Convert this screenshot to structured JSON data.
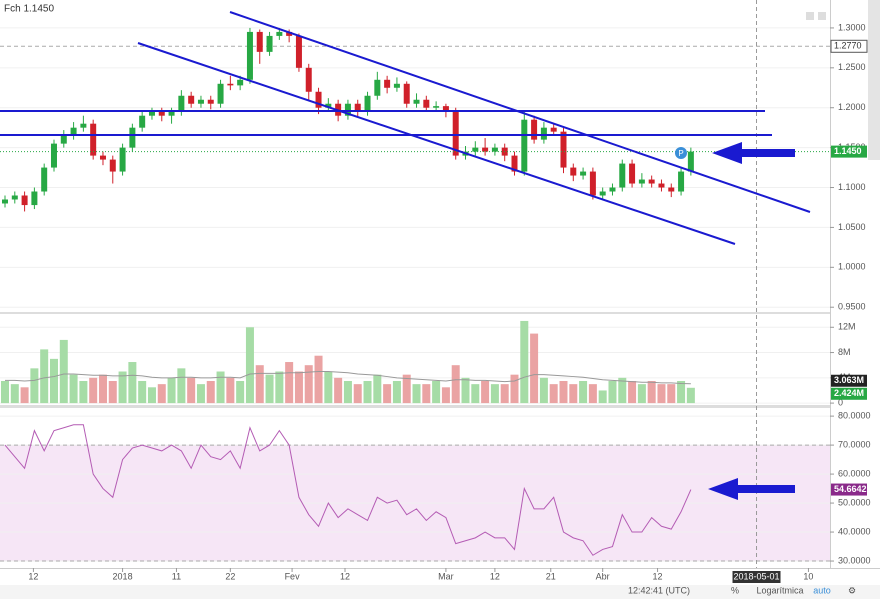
{
  "title": "Fch 1.1450",
  "status": [
    "12:42:41 (UTC)",
    "%",
    "Logarítmica",
    "auto"
  ],
  "chart_data": [
    {
      "type": "candlestick",
      "up_color": "#27a844",
      "down_color": "#d0202a",
      "open": [
        1.08,
        1.085,
        1.09,
        1.078,
        1.095,
        1.125,
        1.155,
        1.165,
        1.175,
        1.18,
        1.14,
        1.135,
        1.12,
        1.15,
        1.175,
        1.19,
        1.195,
        1.19,
        1.195,
        1.215,
        1.205,
        1.21,
        1.205,
        1.23,
        1.228,
        1.235,
        1.295,
        1.27,
        1.29,
        1.295,
        1.29,
        1.25,
        1.22,
        1.2,
        1.205,
        1.19,
        1.205,
        1.195,
        1.215,
        1.235,
        1.225,
        1.23,
        1.205,
        1.21,
        1.2,
        1.202,
        1.195,
        1.14,
        1.145,
        1.15,
        1.145,
        1.15,
        1.14,
        1.12,
        1.185,
        1.16,
        1.175,
        1.17,
        1.125,
        1.115,
        1.12,
        1.09,
        1.095,
        1.1,
        1.13,
        1.105,
        1.11,
        1.105,
        1.1,
        1.095,
        1.12
      ],
      "high": [
        1.09,
        1.095,
        1.095,
        1.1,
        1.13,
        1.16,
        1.172,
        1.182,
        1.19,
        1.185,
        1.145,
        1.14,
        1.155,
        1.18,
        1.195,
        1.2,
        1.2,
        1.2,
        1.222,
        1.22,
        1.215,
        1.215,
        1.235,
        1.24,
        1.24,
        1.3,
        1.298,
        1.295,
        1.3,
        1.298,
        1.293,
        1.255,
        1.225,
        1.212,
        1.21,
        1.21,
        1.21,
        1.22,
        1.245,
        1.24,
        1.238,
        1.233,
        1.218,
        1.215,
        1.208,
        1.205,
        1.2,
        1.152,
        1.158,
        1.162,
        1.155,
        1.155,
        1.145,
        1.195,
        1.19,
        1.182,
        1.18,
        1.175,
        1.13,
        1.125,
        1.125,
        1.1,
        1.105,
        1.135,
        1.135,
        1.118,
        1.115,
        1.11,
        1.105,
        1.125,
        1.15
      ],
      "low": [
        1.075,
        1.08,
        1.07,
        1.073,
        1.09,
        1.12,
        1.15,
        1.16,
        1.17,
        1.135,
        1.128,
        1.105,
        1.115,
        1.145,
        1.17,
        1.185,
        1.183,
        1.18,
        1.19,
        1.2,
        1.2,
        1.198,
        1.2,
        1.222,
        1.222,
        1.23,
        1.255,
        1.265,
        1.285,
        1.282,
        1.245,
        1.21,
        1.192,
        1.195,
        1.183,
        1.185,
        1.188,
        1.19,
        1.21,
        1.218,
        1.22,
        1.2,
        1.2,
        1.195,
        1.195,
        1.188,
        1.135,
        1.135,
        1.14,
        1.14,
        1.14,
        1.133,
        1.115,
        1.115,
        1.155,
        1.155,
        1.165,
        1.118,
        1.108,
        1.11,
        1.085,
        1.085,
        1.09,
        1.095,
        1.1,
        1.1,
        1.1,
        1.095,
        1.088,
        1.09,
        1.115
      ],
      "close": [
        1.085,
        1.09,
        1.078,
        1.095,
        1.125,
        1.155,
        1.165,
        1.175,
        1.18,
        1.14,
        1.135,
        1.12,
        1.15,
        1.175,
        1.19,
        1.195,
        1.19,
        1.195,
        1.215,
        1.205,
        1.21,
        1.205,
        1.23,
        1.228,
        1.235,
        1.295,
        1.27,
        1.29,
        1.295,
        1.29,
        1.25,
        1.22,
        1.2,
        1.205,
        1.19,
        1.205,
        1.195,
        1.215,
        1.235,
        1.225,
        1.23,
        1.205,
        1.21,
        1.2,
        1.202,
        1.195,
        1.14,
        1.145,
        1.15,
        1.145,
        1.15,
        1.14,
        1.12,
        1.185,
        1.16,
        1.175,
        1.17,
        1.125,
        1.115,
        1.12,
        1.09,
        1.095,
        1.1,
        1.13,
        1.105,
        1.11,
        1.105,
        1.1,
        1.095,
        1.12,
        1.145
      ],
      "ylim": [
        0.944,
        1.335
      ],
      "yticks": [
        {
          "value": 0.95,
          "label": "0.9500"
        },
        {
          "value": 1.0,
          "label": "1.0000"
        },
        {
          "value": 1.05,
          "label": "1.0500"
        },
        {
          "value": 1.1,
          "label": "1.1000"
        },
        {
          "value": 1.15,
          "label": "1.1500"
        },
        {
          "value": 1.2,
          "label": "1.2000"
        },
        {
          "value": 1.25,
          "label": "1.2500"
        },
        {
          "value": 1.3,
          "label": "1.3000"
        }
      ],
      "reference_line": {
        "value": 1.277,
        "label": "1.2770"
      },
      "last_label": "1.1450"
    },
    {
      "type": "bar",
      "up_color": "#a6dca6",
      "down_color": "#eaa3a3",
      "values": [
        3.5,
        3.0,
        2.5,
        5.5,
        8.5,
        7.0,
        10.0,
        4.5,
        3.5,
        4.0,
        4.5,
        3.5,
        5.0,
        6.5,
        3.5,
        2.5,
        3.0,
        4.0,
        5.5,
        4.0,
        3.0,
        3.5,
        5.0,
        4.0,
        3.5,
        12.0,
        6.0,
        4.5,
        5.0,
        6.5,
        5.0,
        6.0,
        7.5,
        5.0,
        4.0,
        3.5,
        3.0,
        3.5,
        4.5,
        3.0,
        3.5,
        4.5,
        3.0,
        3.0,
        3.5,
        2.5,
        6.0,
        4.0,
        3.0,
        3.5,
        3.0,
        3.0,
        4.5,
        13.0,
        11.0,
        4.0,
        3.0,
        3.5,
        3.0,
        3.5,
        3.0,
        2.0,
        3.5,
        4.0,
        3.5,
        3.0,
        3.5,
        3.0,
        3.0,
        3.5,
        2.424
      ],
      "last_label": "2.424M",
      "ma": {
        "color": "#999999",
        "values": [
          3.6,
          3.6,
          3.5,
          3.6,
          4.0,
          4.2,
          4.6,
          4.6,
          4.5,
          4.4,
          4.4,
          4.3,
          4.3,
          4.4,
          4.3,
          4.1,
          4.0,
          4.0,
          4.1,
          4.1,
          4.0,
          4.0,
          4.1,
          4.1,
          4.0,
          4.6,
          4.7,
          4.7,
          4.7,
          4.8,
          4.8,
          4.9,
          5.0,
          5.0,
          4.9,
          4.8,
          4.6,
          4.5,
          4.4,
          4.2,
          4.0,
          3.9,
          3.8,
          3.7,
          3.6,
          3.5,
          3.7,
          3.7,
          3.6,
          3.6,
          3.5,
          3.4,
          3.5,
          4.1,
          4.5,
          4.5,
          4.4,
          4.3,
          4.2,
          4.1,
          3.9,
          3.7,
          3.6,
          3.5,
          3.4,
          3.3,
          3.3,
          3.2,
          3.2,
          3.1,
          3.063
        ],
        "last_label": "3.063M"
      },
      "ylim": [
        -0.3,
        14.1
      ],
      "yticks": [
        0,
        {
          "value": 4,
          "label": "4M"
        },
        {
          "value": 8,
          "label": "8M"
        },
        {
          "value": 12,
          "label": "12M"
        }
      ]
    },
    {
      "type": "line",
      "color": "#b45cb4",
      "values": [
        70,
        66,
        62,
        75,
        68,
        75,
        76,
        77,
        77,
        60,
        55,
        52,
        65,
        69,
        70,
        69,
        68,
        70,
        68,
        62,
        70,
        66,
        65,
        68,
        62,
        76,
        68,
        70,
        75,
        70,
        52,
        46,
        42,
        50,
        45,
        48,
        46,
        44,
        52,
        50,
        51,
        46,
        48,
        44,
        47,
        45,
        36,
        37,
        38,
        40,
        38,
        38,
        34,
        55,
        48,
        48,
        52,
        40,
        38,
        37,
        32,
        34,
        35,
        46,
        40,
        40,
        45,
        42,
        41,
        47,
        54.6642
      ],
      "last_label": "54.6642",
      "band": [
        30,
        70
      ],
      "ylim": [
        27.6,
        82.8
      ],
      "yticks": [
        {
          "value": 30,
          "label": "30.0000"
        },
        {
          "value": 40,
          "label": "40.0000"
        },
        {
          "value": 50,
          "label": "50.0000"
        },
        {
          "value": 60,
          "label": "60.0000"
        },
        {
          "value": 70,
          "label": "70.0000"
        },
        {
          "value": 80,
          "label": "80.0000"
        }
      ],
      "xlim": [
        -0.51,
        84.2
      ],
      "xticks": [
        {
          "value": 2.9,
          "label": "12"
        },
        {
          "value": 12,
          "label": "2018"
        },
        {
          "value": 17.5,
          "label": "11"
        },
        {
          "value": 23,
          "label": "22"
        },
        {
          "value": 29.3,
          "label": "Fev"
        },
        {
          "value": 34.7,
          "label": "12"
        },
        {
          "value": 45,
          "label": "Mar"
        },
        {
          "value": 50,
          "label": "12"
        },
        {
          "value": 55.7,
          "label": "21"
        },
        {
          "value": 61,
          "label": "Abr"
        },
        {
          "value": 66.6,
          "label": "12"
        },
        {
          "value": 82,
          "label": "10"
        }
      ],
      "crosshair": {
        "value": 76.7,
        "label": "2018-05-01"
      }
    }
  ]
}
